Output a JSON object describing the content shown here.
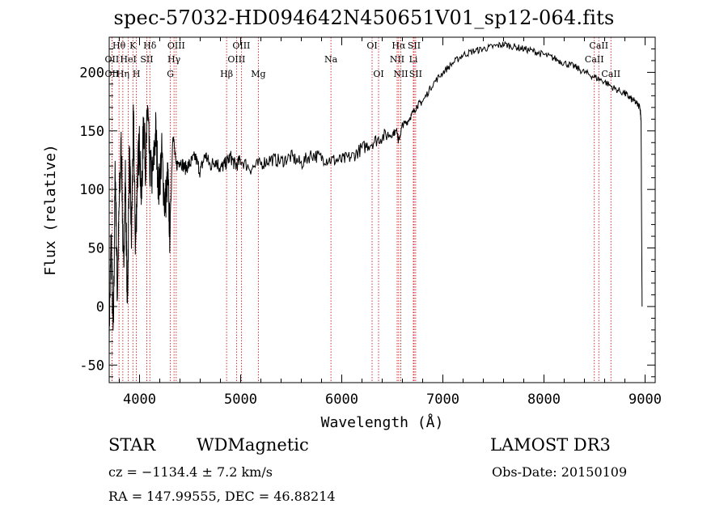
{
  "chart_data": {
    "type": "line",
    "title": "spec-57032-HD094642N450651V01_sp12-064.fits",
    "xlabel": "Wavelength (Å)",
    "ylabel": "Flux (relative)",
    "xlim": [
      3700,
      9100
    ],
    "ylim": [
      -65,
      230
    ],
    "x_ticks": [
      4000,
      5000,
      6000,
      7000,
      8000,
      9000
    ],
    "y_ticks": [
      -50,
      0,
      50,
      100,
      150,
      200
    ],
    "grid": false,
    "series": [
      {
        "name": "flux",
        "x": [
          3700,
          3720,
          3740,
          3760,
          3780,
          3800,
          3820,
          3840,
          3860,
          3880,
          3900,
          3920,
          3940,
          3960,
          3980,
          4000,
          4020,
          4040,
          4060,
          4080,
          4100,
          4130,
          4160,
          4190,
          4220,
          4250,
          4280,
          4300,
          4330,
          4360,
          4400,
          4450,
          4500,
          4550,
          4600,
          4650,
          4700,
          4750,
          4800,
          4850,
          4900,
          4950,
          5000,
          5100,
          5200,
          5300,
          5400,
          5500,
          5600,
          5700,
          5800,
          5900,
          6000,
          6100,
          6200,
          6300,
          6400,
          6500,
          6550,
          6560,
          6600,
          6650,
          6700,
          6750,
          6800,
          6900,
          7000,
          7100,
          7200,
          7300,
          7400,
          7500,
          7600,
          7700,
          7800,
          7900,
          8000,
          8100,
          8200,
          8300,
          8400,
          8500,
          8600,
          8700,
          8800,
          8850,
          8900,
          8950,
          8960,
          8970
        ],
        "y": [
          -20,
          60,
          -30,
          120,
          10,
          90,
          140,
          30,
          110,
          0,
          130,
          60,
          160,
          50,
          115,
          140,
          90,
          160,
          120,
          172,
          120,
          110,
          150,
          100,
          130,
          85,
          110,
          60,
          150,
          120,
          125,
          118,
          122,
          128,
          115,
          130,
          120,
          125,
          118,
          122,
          128,
          120,
          125,
          118,
          122,
          126,
          124,
          128,
          122,
          130,
          127,
          125,
          125,
          128,
          135,
          140,
          145,
          148,
          150,
          140,
          155,
          158,
          165,
          172,
          175,
          190,
          200,
          208,
          215,
          218,
          220,
          222,
          224,
          222,
          220,
          218,
          215,
          212,
          208,
          205,
          200,
          196,
          192,
          186,
          182,
          178,
          175,
          170,
          160,
          0
        ],
        "color": "#000000"
      }
    ],
    "line_markers": [
      {
        "label": "Hθ",
        "x": 3797,
        "row": 0
      },
      {
        "label": "OII",
        "x": 3727,
        "row": 1
      },
      {
        "label": "OII",
        "x": 3727,
        "row": 2
      },
      {
        "label": "Hη",
        "x": 3835,
        "row": 2
      },
      {
        "label": "HeI",
        "x": 3889,
        "row": 1
      },
      {
        "label": "K",
        "x": 3934,
        "row": 0
      },
      {
        "label": "SII",
        "x": 4072,
        "row": 1
      },
      {
        "label": "H",
        "x": 3969,
        "row": 2
      },
      {
        "label": "Hδ",
        "x": 4102,
        "row": 0
      },
      {
        "label": "OIII",
        "x": 4363,
        "row": 0
      },
      {
        "label": "Hγ",
        "x": 4341,
        "row": 1
      },
      {
        "label": "G",
        "x": 4305,
        "row": 2
      },
      {
        "label": "OIII",
        "x": 5007,
        "row": 0
      },
      {
        "label": "OIII",
        "x": 4959,
        "row": 1
      },
      {
        "label": "Hβ",
        "x": 4861,
        "row": 2
      },
      {
        "label": "Mg",
        "x": 5175,
        "row": 2
      },
      {
        "label": "Na",
        "x": 5893,
        "row": 1
      },
      {
        "label": "OI",
        "x": 6300,
        "row": 0
      },
      {
        "label": "OI",
        "x": 6364,
        "row": 2
      },
      {
        "label": "Hα",
        "x": 6563,
        "row": 0
      },
      {
        "label": "SII",
        "x": 6716,
        "row": 0
      },
      {
        "label": "NII",
        "x": 6548,
        "row": 1
      },
      {
        "label": "Li",
        "x": 6708,
        "row": 1
      },
      {
        "label": "NII",
        "x": 6584,
        "row": 2
      },
      {
        "label": "SII",
        "x": 6731,
        "row": 2
      },
      {
        "label": "CaII",
        "x": 8542,
        "row": 0
      },
      {
        "label": "CaII",
        "x": 8498,
        "row": 1
      },
      {
        "label": "CaII",
        "x": 8662,
        "row": 2
      }
    ],
    "marker_color": "#cc0000"
  },
  "footer": {
    "class_label": "STAR",
    "subclass": "WDMagnetic",
    "survey": "LAMOST DR3",
    "cz": "cz = −1134.4 ± 7.2 km/s",
    "obs_date": "Obs-Date: 20150109",
    "coords": "RA = 147.99555, DEC =  46.88214"
  }
}
